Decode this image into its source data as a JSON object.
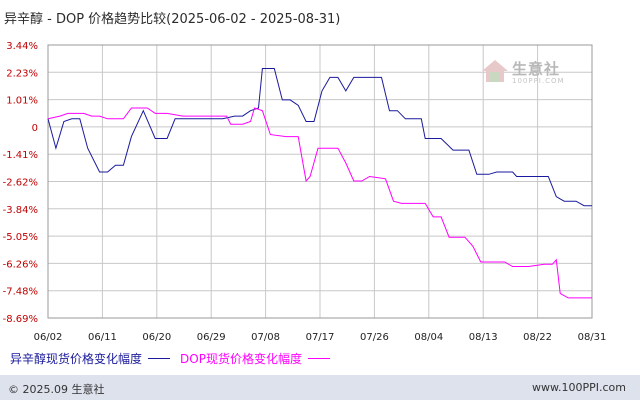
{
  "chart_data": {
    "type": "line",
    "title": "异辛醇 - DOP 价格趋势比较(2025-06-02 - 2025-08-31)",
    "x_categories": [
      "06/02",
      "06/11",
      "06/20",
      "06/29",
      "07/08",
      "07/17",
      "07/26",
      "08/04",
      "08/13",
      "08/22",
      "08/31"
    ],
    "x_range": [
      "06/02",
      "08/31"
    ],
    "y_ticks": [
      "3.44%",
      "2.23%",
      "1.01%",
      "0",
      "-1.41%",
      "-2.62%",
      "-3.84%",
      "-5.05%",
      "-6.26%",
      "-7.48%",
      "-8.69%"
    ],
    "y_tick_values": [
      3.44,
      2.23,
      1.01,
      0,
      -1.41,
      -2.62,
      -3.84,
      -5.05,
      -6.26,
      -7.48,
      -8.69
    ],
    "ylim": [
      -8.69,
      3.44
    ],
    "grid": true,
    "legend_position": "bottom-left",
    "series": [
      {
        "name": "异辛醇现货价格变化幅度",
        "color": "#1a1a9c",
        "points": [
          [
            0,
            0.3
          ],
          [
            2,
            -1.1
          ],
          [
            4,
            0.2
          ],
          [
            6,
            0.3
          ],
          [
            8,
            0.3
          ],
          [
            10,
            -1.1
          ],
          [
            13,
            -2.2
          ],
          [
            15,
            -2.2
          ],
          [
            17,
            -1.9
          ],
          [
            19,
            -1.9
          ],
          [
            21,
            -0.5
          ],
          [
            24,
            0.6
          ],
          [
            27,
            -0.6
          ],
          [
            30,
            -0.6
          ],
          [
            32,
            0.3
          ],
          [
            35,
            0.3
          ],
          [
            44,
            0.3
          ],
          [
            47,
            0.4
          ],
          [
            49,
            0.4
          ],
          [
            51,
            0.6
          ],
          [
            53,
            0.7
          ],
          [
            54,
            2.4
          ],
          [
            57,
            2.4
          ],
          [
            59,
            1.0
          ],
          [
            61,
            1.0
          ],
          [
            63,
            0.8
          ],
          [
            65,
            0.2
          ],
          [
            67,
            0.2
          ],
          [
            69,
            1.4
          ],
          [
            71,
            2.0
          ],
          [
            73,
            2.0
          ],
          [
            75,
            1.4
          ],
          [
            77,
            2.0
          ],
          [
            84,
            2.0
          ],
          [
            86,
            0.6
          ],
          [
            88,
            0.6
          ],
          [
            90,
            0.3
          ],
          [
            94,
            0.3
          ],
          [
            95,
            -0.6
          ],
          [
            99,
            -0.6
          ],
          [
            102,
            -1.2
          ],
          [
            106,
            -1.2
          ],
          [
            108,
            -2.3
          ],
          [
            111,
            -2.3
          ],
          [
            113,
            -2.2
          ],
          [
            117,
            -2.2
          ],
          [
            118,
            -2.4
          ],
          [
            126,
            -2.4
          ],
          [
            128,
            -3.3
          ],
          [
            130,
            -3.5
          ],
          [
            133,
            -3.5
          ],
          [
            135,
            -3.7
          ],
          [
            137,
            -3.7
          ]
        ]
      },
      {
        "name": "DOP现货价格变化幅度",
        "color": "#ff00ff",
        "points": [
          [
            0,
            0.3
          ],
          [
            3,
            0.4
          ],
          [
            5,
            0.5
          ],
          [
            9,
            0.5
          ],
          [
            11,
            0.4
          ],
          [
            13,
            0.4
          ],
          [
            15,
            0.3
          ],
          [
            19,
            0.3
          ],
          [
            21,
            0.7
          ],
          [
            25,
            0.7
          ],
          [
            27,
            0.5
          ],
          [
            30,
            0.5
          ],
          [
            34,
            0.4
          ],
          [
            45,
            0.4
          ],
          [
            46,
            0.1
          ],
          [
            47,
            0.1
          ],
          [
            49,
            0.1
          ],
          [
            51,
            0.2
          ],
          [
            52,
            0.7
          ],
          [
            54,
            0.6
          ],
          [
            56,
            -0.4
          ],
          [
            60,
            -0.5
          ],
          [
            63,
            -0.5
          ],
          [
            65,
            -2.6
          ],
          [
            66,
            -2.4
          ],
          [
            68,
            -1.1
          ],
          [
            73,
            -1.1
          ],
          [
            75,
            -1.8
          ],
          [
            77,
            -2.6
          ],
          [
            79,
            -2.6
          ],
          [
            81,
            -2.4
          ],
          [
            85,
            -2.5
          ],
          [
            87,
            -3.5
          ],
          [
            89,
            -3.6
          ],
          [
            91,
            -3.6
          ],
          [
            95,
            -3.6
          ],
          [
            97,
            -4.2
          ],
          [
            99,
            -4.2
          ],
          [
            101,
            -5.1
          ],
          [
            105,
            -5.1
          ],
          [
            107,
            -5.5
          ],
          [
            109,
            -6.2
          ],
          [
            115,
            -6.2
          ],
          [
            117,
            -6.4
          ],
          [
            121,
            -6.4
          ],
          [
            125,
            -6.3
          ],
          [
            127,
            -6.3
          ],
          [
            128,
            -6.1
          ],
          [
            129,
            -7.6
          ],
          [
            131,
            -7.8
          ],
          [
            137,
            -7.8
          ]
        ]
      }
    ]
  },
  "legend": {
    "series1_label": "异辛醇现货价格变化幅度",
    "series2_label": "DOP现货价格变化幅度"
  },
  "footer": {
    "left": "© 2025.09 生意社",
    "right": "www.100PPI.com"
  },
  "watermark": {
    "text": "生意社",
    "sub": "100PPI.COM"
  },
  "colors": {
    "series1": "#1a1a9c",
    "series2": "#ff00ff",
    "tick_label": "#c00000",
    "grid": "#c8c8c8",
    "footer_bg": "#dde2ec"
  }
}
